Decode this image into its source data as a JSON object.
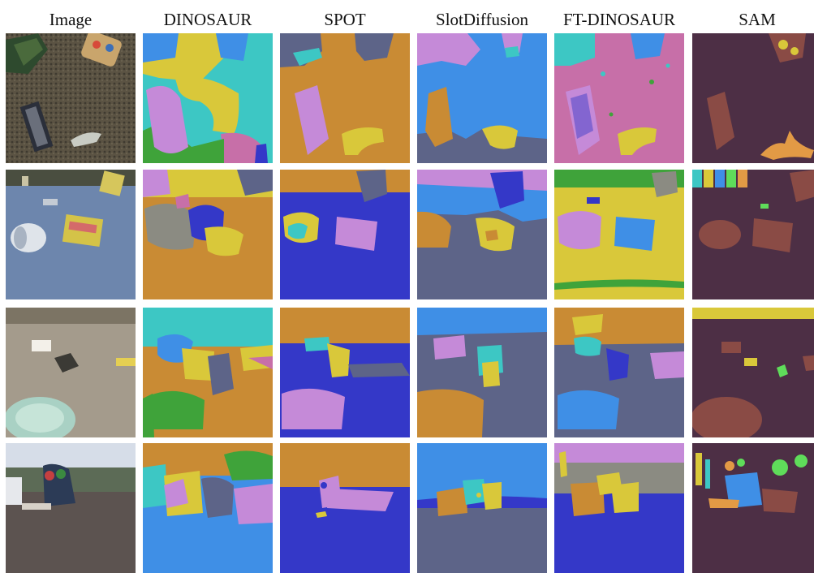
{
  "columns": [
    {
      "label": "Image"
    },
    {
      "label": "DINOSAUR"
    },
    {
      "label": "SPOT"
    },
    {
      "label": "SlotDiffusion"
    },
    {
      "label": "FT-DINOSAUR"
    },
    {
      "label": "SAM"
    }
  ],
  "colors": {
    "blue": "#3f8fe6",
    "navy": "#3438c8",
    "orange": "#c98b34",
    "yellow": "#d9c83a",
    "violet": "#c58ad8",
    "pink": "#c76fa8",
    "teal": "#3dc7c4",
    "green": "#3fa33a",
    "slate": "#5d6488",
    "grayish": "#8b8b82",
    "sam_bg": "#4d2f45",
    "sam_obj": "#8a4b45",
    "sam_orange": "#e29a45",
    "sam_green": "#5fdc5a"
  },
  "rows": [
    {
      "scene": "dark textured ground with scattered toys"
    },
    {
      "scene": "bluish rug with white cup and colorful boxes"
    },
    {
      "scene": "beige floor with small toys and green plate"
    },
    {
      "scene": "outdoor deck with trees and toy train"
    }
  ]
}
